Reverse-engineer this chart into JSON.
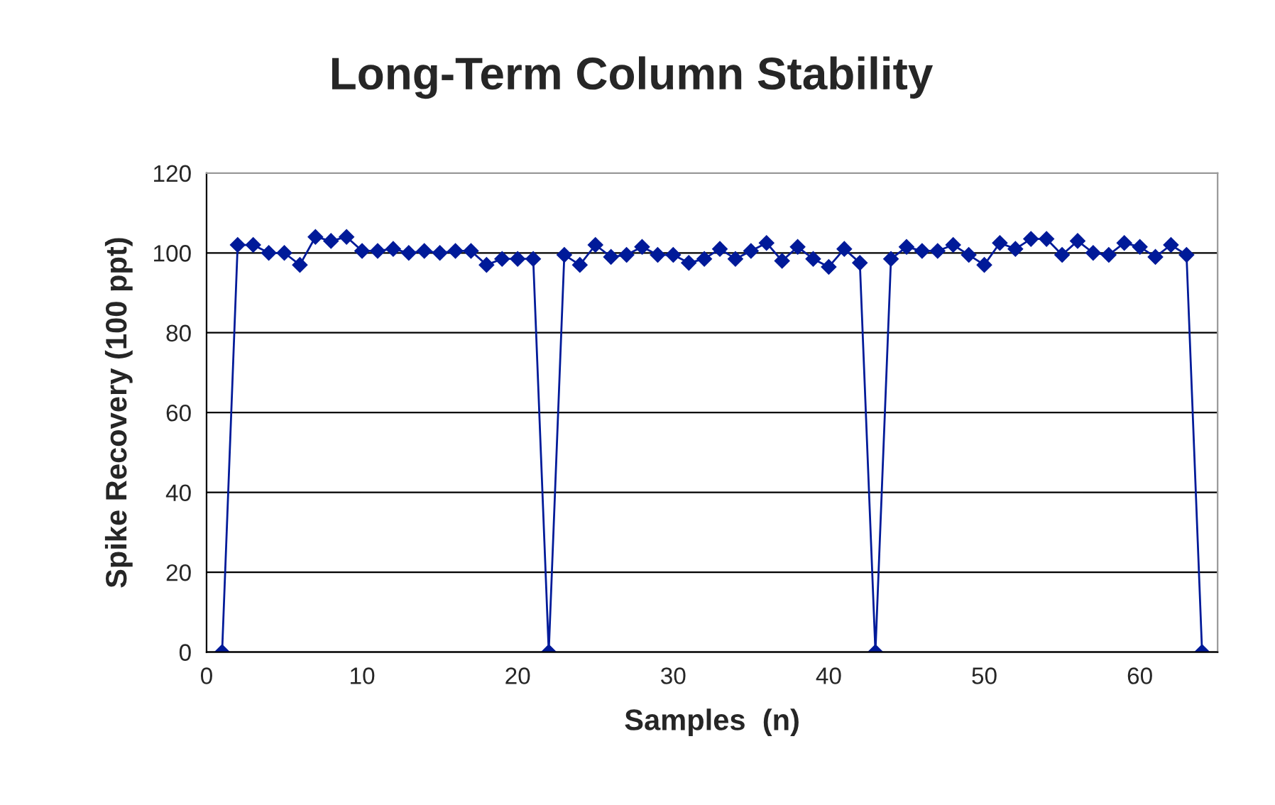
{
  "chart_data": {
    "type": "line",
    "title": "Long-Term Column Stability",
    "xlabel": "Samples  (n)",
    "ylabel": "Spike Recovery (100 ppt)",
    "x": [
      1,
      2,
      3,
      4,
      5,
      6,
      7,
      8,
      9,
      10,
      11,
      12,
      13,
      14,
      15,
      16,
      17,
      18,
      19,
      20,
      21,
      22,
      23,
      24,
      25,
      26,
      27,
      28,
      29,
      30,
      31,
      32,
      33,
      34,
      35,
      36,
      37,
      38,
      39,
      40,
      41,
      42,
      43,
      44,
      45,
      46,
      47,
      48,
      49,
      50,
      51,
      52,
      53,
      54,
      55,
      56,
      57,
      58,
      59,
      60,
      61,
      62,
      63,
      64
    ],
    "series": [
      {
        "color": "#001a99",
        "values": [
          0,
          102,
          102,
          100,
          100,
          97,
          104,
          103,
          104,
          100.5,
          100.5,
          101,
          100,
          100.5,
          100,
          100.5,
          100.5,
          97,
          98.5,
          98.5,
          98.5,
          0,
          99.5,
          97,
          102,
          99,
          99.5,
          101.5,
          99.5,
          99.5,
          97.5,
          98.5,
          101,
          98.5,
          100.5,
          102.5,
          98,
          101.5,
          98.5,
          96.5,
          101,
          97.5,
          0,
          98.5,
          101.5,
          100.5,
          100.5,
          102,
          99.5,
          97,
          102.5,
          101,
          103.5,
          103.5,
          99.5,
          103,
          100,
          99.5,
          102.5,
          101.5,
          99,
          102,
          99.5,
          0
        ]
      }
    ],
    "xlim": [
      0,
      65
    ],
    "xticks": [
      0,
      10,
      20,
      30,
      40,
      50,
      60
    ],
    "ylim": [
      0,
      120
    ],
    "yticks": [
      0,
      20,
      40,
      60,
      80,
      100,
      120
    ],
    "grid": "y",
    "marker": "diamond",
    "line_style": "solid",
    "legend": false
  }
}
